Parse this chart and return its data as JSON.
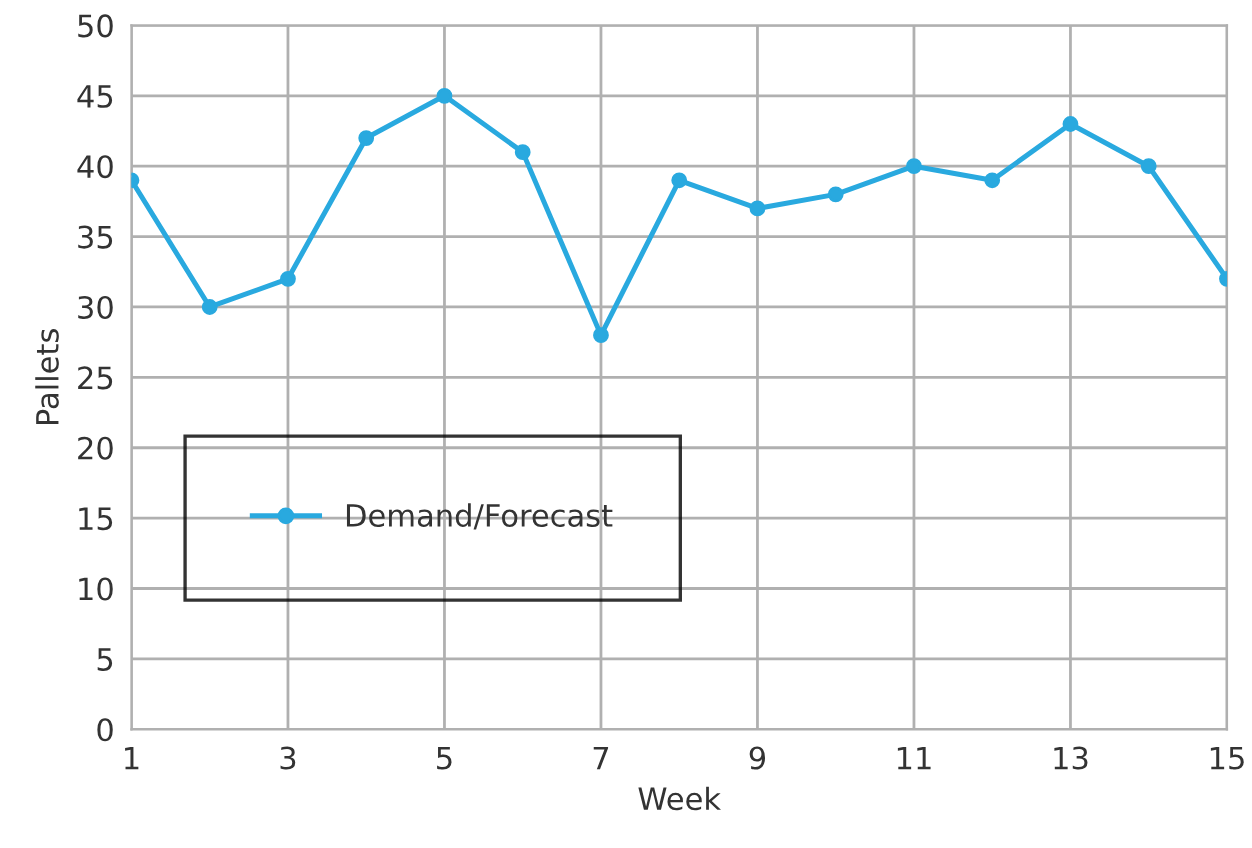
{
  "chart_data": {
    "type": "line",
    "xlabel": "Week",
    "ylabel": "Pallets",
    "x": [
      1,
      2,
      3,
      4,
      5,
      6,
      7,
      8,
      9,
      10,
      11,
      12,
      13,
      14,
      15
    ],
    "series": [
      {
        "name": "Demand/Forecast",
        "color": "#29a9df",
        "values": [
          39,
          30,
          32,
          42,
          45,
          41,
          28,
          39,
          37,
          38,
          40,
          39,
          43,
          40,
          32
        ]
      }
    ],
    "xlim": [
      1,
      15
    ],
    "xticks": [
      1,
      3,
      5,
      7,
      9,
      11,
      13,
      15
    ],
    "ylim": [
      0,
      50
    ],
    "yticks": [
      0,
      5,
      10,
      15,
      20,
      25,
      30,
      35,
      40,
      45,
      50
    ],
    "grid": true,
    "legend": "left",
    "marker": "circle",
    "line_style": "solid"
  }
}
